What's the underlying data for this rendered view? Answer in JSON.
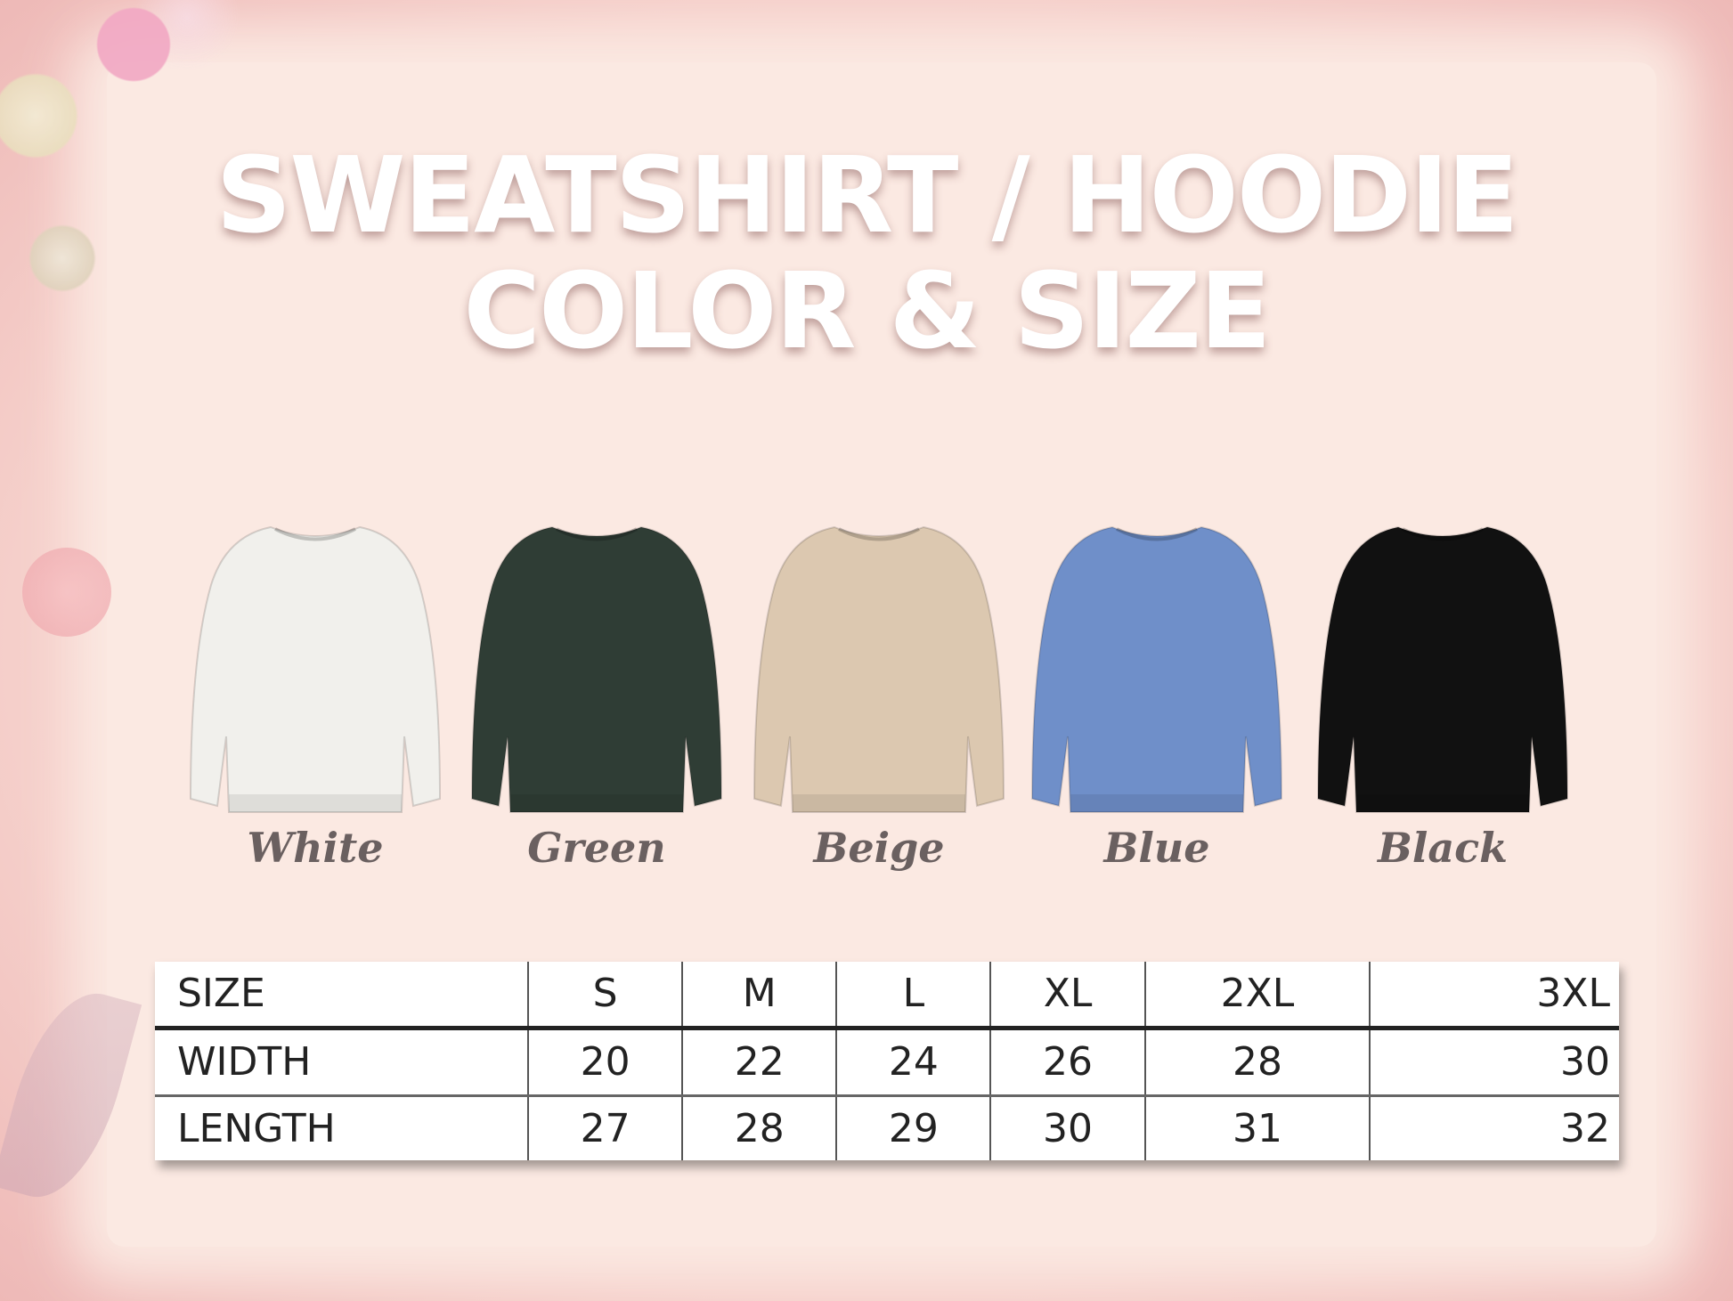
{
  "title": {
    "line1": "SWEATSHIRT / HOODIE",
    "line2": "COLOR & SIZE"
  },
  "colors": [
    {
      "label": "White",
      "hex": "#f1f0ec"
    },
    {
      "label": "Green",
      "hex": "#2f3d35"
    },
    {
      "label": "Beige",
      "hex": "#dcc8b0"
    },
    {
      "label": "Blue",
      "hex": "#6f8fc9"
    },
    {
      "label": "Black",
      "hex": "#111111"
    }
  ],
  "size_table": {
    "header": [
      "SIZE",
      "S",
      "M",
      "L",
      "XL",
      "2XL",
      "3XL"
    ],
    "rows": [
      [
        "WIDTH",
        "20",
        "22",
        "24",
        "26",
        "28",
        "30"
      ],
      [
        "LENGTH",
        "27",
        "28",
        "29",
        "30",
        "31",
        "32"
      ]
    ]
  }
}
